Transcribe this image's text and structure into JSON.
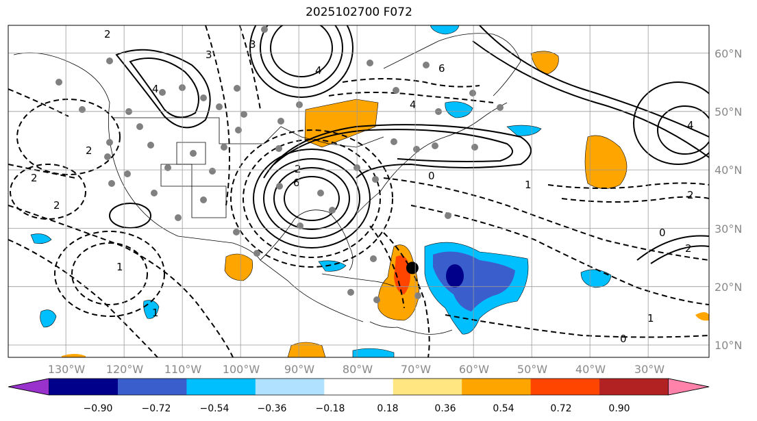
{
  "title": "2025102700 F072",
  "map": {
    "lon_labels": [
      "130°W",
      "120°W",
      "110°W",
      "100°W",
      "90°W",
      "80°W",
      "70°W",
      "60°W",
      "50°W",
      "40°W",
      "30°W"
    ],
    "lat_labels": [
      "60°N",
      "50°N",
      "40°N",
      "30°N",
      "20°N",
      "10°N"
    ],
    "storm_marker": {
      "lon": -70.5,
      "lat": 23.2
    }
  },
  "colorbar": {
    "colors": [
      "#9932cc",
      "#00008b",
      "#3a5fcd",
      "#00bfff",
      "#b0e2ff",
      "#ffffff",
      "#ffe680",
      "#ffa500",
      "#ff4500",
      "#b22222",
      "#ff82ab"
    ],
    "ticks": [
      "−0.90",
      "−0.72",
      "−0.54",
      "−0.36",
      "−0.18",
      "0.18",
      "0.36",
      "0.54",
      "0.72",
      "0.90"
    ],
    "extend": "both"
  },
  "contour_labels": [
    "2",
    "3",
    "4",
    "4",
    "3",
    "6",
    "4",
    "2",
    "6",
    "0",
    "1",
    "2",
    "2",
    "2",
    "1",
    "2",
    "0",
    "4",
    "2",
    "1",
    "0",
    "1"
  ]
}
